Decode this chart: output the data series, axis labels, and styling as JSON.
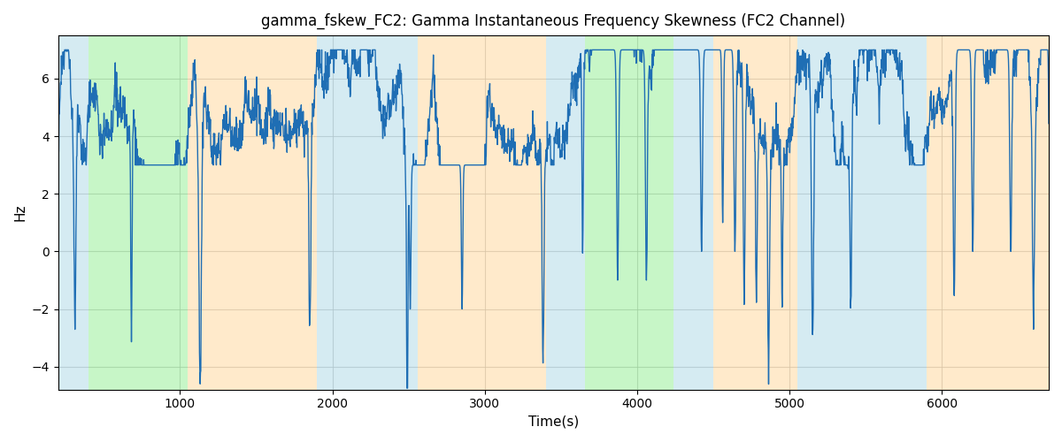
{
  "title": "gamma_fskew_FC2: Gamma Instantaneous Frequency Skewness (FC2 Channel)",
  "xlabel": "Time(s)",
  "ylabel": "Hz",
  "xlim": [
    200,
    6700
  ],
  "ylim": [
    -4.8,
    7.5
  ],
  "figsize": [
    12.0,
    5.0
  ],
  "dpi": 100,
  "line_color": "#1f6eb4",
  "line_width": 1.0,
  "bg_regions": [
    {
      "xmin": 200,
      "xmax": 400,
      "color": "#add8e6",
      "alpha": 0.5
    },
    {
      "xmin": 400,
      "xmax": 1050,
      "color": "#90ee90",
      "alpha": 0.5
    },
    {
      "xmin": 1050,
      "xmax": 1900,
      "color": "#ffd699",
      "alpha": 0.5
    },
    {
      "xmin": 1900,
      "xmax": 2560,
      "color": "#add8e6",
      "alpha": 0.5
    },
    {
      "xmin": 2560,
      "xmax": 3400,
      "color": "#ffd699",
      "alpha": 0.5
    },
    {
      "xmin": 3400,
      "xmax": 3560,
      "color": "#add8e6",
      "alpha": 0.5
    },
    {
      "xmin": 3560,
      "xmax": 3660,
      "color": "#add8e6",
      "alpha": 0.5
    },
    {
      "xmin": 3660,
      "xmax": 4240,
      "color": "#90ee90",
      "alpha": 0.5
    },
    {
      "xmin": 4240,
      "xmax": 4500,
      "color": "#add8e6",
      "alpha": 0.5
    },
    {
      "xmin": 4500,
      "xmax": 5050,
      "color": "#ffd699",
      "alpha": 0.5
    },
    {
      "xmin": 5050,
      "xmax": 5900,
      "color": "#add8e6",
      "alpha": 0.5
    },
    {
      "xmin": 5900,
      "xmax": 6700,
      "color": "#ffd699",
      "alpha": 0.5
    }
  ],
  "grid_color": "#b0b0b0",
  "grid_alpha": 0.7,
  "grid_linewidth": 0.8,
  "yticks": [
    -4,
    -2,
    0,
    2,
    4,
    6
  ],
  "xticks": [
    1000,
    2000,
    3000,
    4000,
    5000,
    6000
  ],
  "seed": 12345,
  "n_points": 3000,
  "base_value": 5.0,
  "slow_noise_scale": 0.3,
  "fast_noise_scale": 0.35,
  "smooth_window": 8
}
